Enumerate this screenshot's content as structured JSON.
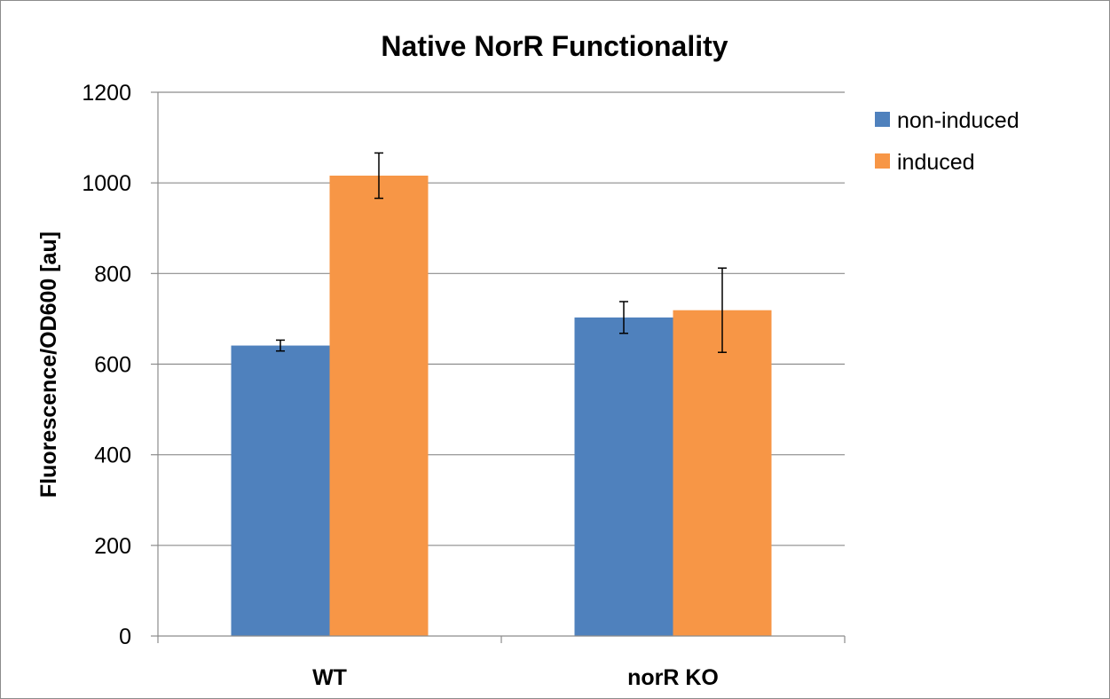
{
  "chart_data": {
    "type": "bar",
    "title": "Native NorR Functionality",
    "xlabel": "",
    "ylabel": "Fluorescence/OD600 [au]",
    "categories": [
      "WT",
      "norR KO"
    ],
    "series": [
      {
        "name": "non-induced",
        "color": "#4f81bd",
        "values": [
          641,
          703
        ],
        "errors": [
          12,
          35
        ]
      },
      {
        "name": "induced",
        "color": "#f79646",
        "values": [
          1016,
          719
        ],
        "errors": [
          50,
          93
        ]
      }
    ],
    "ylim": [
      0,
      1200
    ],
    "yticks": [
      "0",
      "200",
      "400",
      "600",
      "800",
      "1000",
      "1200"
    ],
    "grid": true,
    "legend_position": "right"
  }
}
